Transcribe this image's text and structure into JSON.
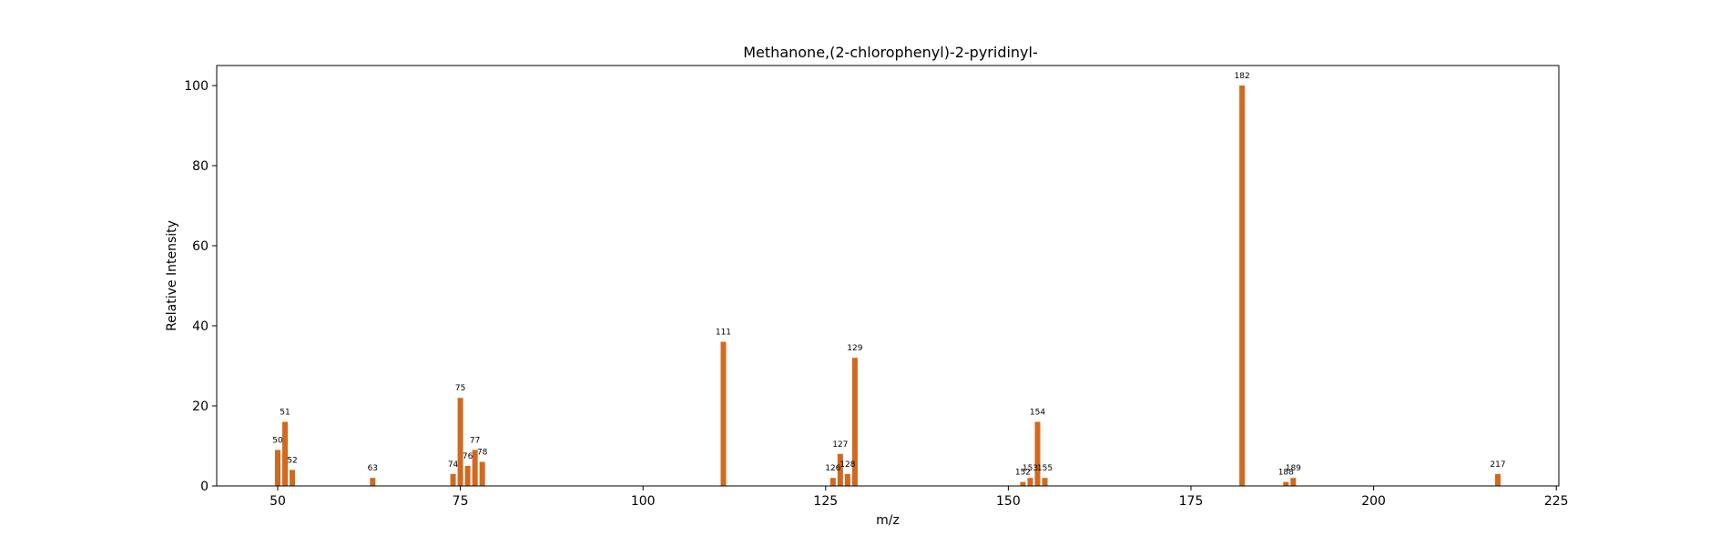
{
  "chart_data": {
    "type": "bar",
    "title": "Methanone,(2-chlorophenyl)-2-pyridinyl-",
    "xlabel": "m/z",
    "ylabel": "Relative Intensity",
    "xlim": [
      41.65,
      225.35
    ],
    "ylim": [
      0,
      105
    ],
    "xticks": [
      50,
      75,
      100,
      125,
      150,
      175,
      200,
      225
    ],
    "yticks": [
      0,
      20,
      40,
      60,
      80,
      100
    ],
    "grid": false,
    "bar_color": "#d2691e",
    "peaks": [
      {
        "mz": 50,
        "intensity": 9,
        "label": "50"
      },
      {
        "mz": 51,
        "intensity": 16,
        "label": "51"
      },
      {
        "mz": 52,
        "intensity": 4,
        "label": "52"
      },
      {
        "mz": 63,
        "intensity": 2,
        "label": "63"
      },
      {
        "mz": 74,
        "intensity": 3,
        "label": "74"
      },
      {
        "mz": 75,
        "intensity": 22,
        "label": "75"
      },
      {
        "mz": 76,
        "intensity": 5,
        "label": "76"
      },
      {
        "mz": 77,
        "intensity": 9,
        "label": "77"
      },
      {
        "mz": 78,
        "intensity": 6,
        "label": "78"
      },
      {
        "mz": 111,
        "intensity": 36,
        "label": "111"
      },
      {
        "mz": 126,
        "intensity": 2,
        "label": "126"
      },
      {
        "mz": 127,
        "intensity": 8,
        "label": "127"
      },
      {
        "mz": 128,
        "intensity": 3,
        "label": "128"
      },
      {
        "mz": 129,
        "intensity": 32,
        "label": "129"
      },
      {
        "mz": 152,
        "intensity": 1,
        "label": "152"
      },
      {
        "mz": 153,
        "intensity": 2,
        "label": "153"
      },
      {
        "mz": 154,
        "intensity": 16,
        "label": "154"
      },
      {
        "mz": 155,
        "intensity": 2,
        "label": "155"
      },
      {
        "mz": 182,
        "intensity": 100,
        "label": "182"
      },
      {
        "mz": 188,
        "intensity": 1,
        "label": "188"
      },
      {
        "mz": 189,
        "intensity": 2,
        "label": "189"
      },
      {
        "mz": 217,
        "intensity": 3,
        "label": "217"
      }
    ]
  }
}
